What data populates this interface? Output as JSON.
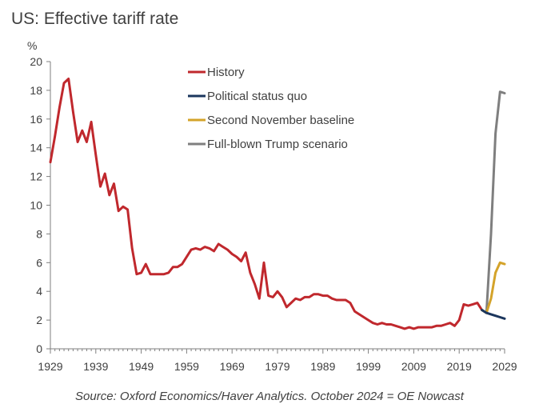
{
  "title": "US: Effective tariff rate",
  "source": "Source: Oxford Economics/Haver Analytics. October 2024 = OE Nowcast",
  "chart_data": {
    "type": "line",
    "title": "US: Effective tariff rate",
    "ylabel": "%",
    "xlabel": "",
    "xlim": [
      1929,
      2029
    ],
    "ylim": [
      0,
      20
    ],
    "yticks": [
      0,
      2,
      4,
      6,
      8,
      10,
      12,
      14,
      16,
      18,
      20
    ],
    "xticks": [
      1929,
      1939,
      1949,
      1959,
      1969,
      1979,
      1989,
      1999,
      2009,
      2019,
      2029
    ],
    "grid": false,
    "legend_position": "top-center",
    "series": [
      {
        "name": "History",
        "color": "#C0282D",
        "x": [
          1929,
          1930,
          1931,
          1932,
          1933,
          1934,
          1935,
          1936,
          1937,
          1938,
          1939,
          1940,
          1941,
          1942,
          1943,
          1944,
          1945,
          1946,
          1947,
          1948,
          1949,
          1950,
          1951,
          1952,
          1953,
          1954,
          1955,
          1956,
          1957,
          1958,
          1959,
          1960,
          1961,
          1962,
          1963,
          1964,
          1965,
          1966,
          1967,
          1968,
          1969,
          1970,
          1971,
          1972,
          1973,
          1974,
          1975,
          1976,
          1977,
          1978,
          1979,
          1980,
          1981,
          1982,
          1983,
          1984,
          1985,
          1986,
          1987,
          1988,
          1989,
          1990,
          1991,
          1992,
          1993,
          1994,
          1995,
          1996,
          1997,
          1998,
          1999,
          2000,
          2001,
          2002,
          2003,
          2004,
          2005,
          2006,
          2007,
          2008,
          2009,
          2010,
          2011,
          2012,
          2013,
          2014,
          2015,
          2016,
          2017,
          2018,
          2019,
          2020,
          2021,
          2022,
          2023,
          2024
        ],
        "values": [
          13.0,
          14.8,
          16.8,
          18.5,
          18.8,
          16.5,
          14.4,
          15.2,
          14.4,
          15.8,
          13.5,
          11.3,
          12.2,
          10.7,
          11.5,
          9.6,
          9.9,
          9.7,
          7.0,
          5.2,
          5.3,
          5.9,
          5.2,
          5.2,
          5.2,
          5.2,
          5.3,
          5.7,
          5.7,
          5.9,
          6.4,
          6.9,
          7.0,
          6.9,
          7.1,
          7.0,
          6.8,
          7.3,
          7.1,
          6.9,
          6.6,
          6.4,
          6.1,
          6.7,
          5.3,
          4.5,
          3.5,
          6.0,
          3.7,
          3.6,
          4.0,
          3.6,
          2.9,
          3.2,
          3.5,
          3.4,
          3.6,
          3.6,
          3.8,
          3.8,
          3.7,
          3.7,
          3.5,
          3.4,
          3.4,
          3.4,
          3.2,
          2.6,
          2.4,
          2.2,
          2.0,
          1.8,
          1.7,
          1.8,
          1.7,
          1.7,
          1.6,
          1.5,
          1.4,
          1.5,
          1.4,
          1.5,
          1.5,
          1.5,
          1.5,
          1.6,
          1.6,
          1.7,
          1.8,
          1.6,
          2.0,
          3.1,
          3.0,
          3.1,
          3.2,
          2.7
        ]
      },
      {
        "name": "Political status quo",
        "color": "#1B365D",
        "x": [
          2024,
          2025,
          2026,
          2027,
          2028,
          2029
        ],
        "values": [
          2.7,
          2.5,
          2.4,
          2.3,
          2.2,
          2.1
        ]
      },
      {
        "name": "Second November baseline",
        "color": "#D4A32A",
        "x": [
          2024,
          2025,
          2026,
          2027,
          2028,
          2029
        ],
        "values": [
          2.7,
          2.5,
          3.5,
          5.3,
          6.0,
          5.9
        ]
      },
      {
        "name": "Full-blown Trump scenario",
        "color": "#7F7F7F",
        "x": [
          2024,
          2025,
          2026,
          2027,
          2028,
          2029
        ],
        "values": [
          2.7,
          2.5,
          8.0,
          15.0,
          17.9,
          17.8
        ]
      }
    ]
  }
}
